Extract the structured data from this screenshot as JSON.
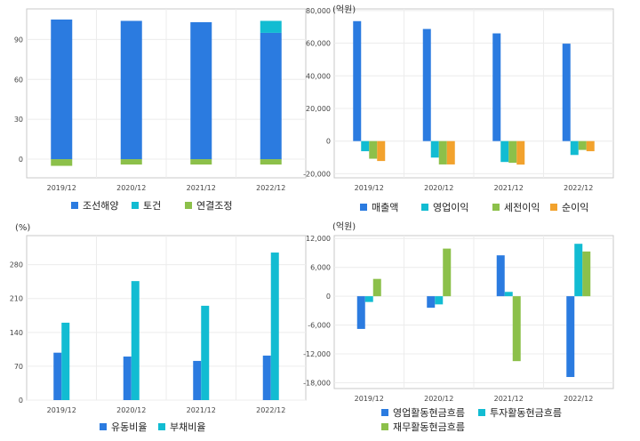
{
  "chart_data": [
    {
      "type": "bar",
      "stacked": true,
      "unit": "",
      "categories": [
        "2019/12",
        "2020/12",
        "2021/12",
        "2022/12"
      ],
      "series": [
        {
          "name": "조선해양",
          "color": "#2b7be0",
          "values": [
            105,
            104,
            103,
            95
          ]
        },
        {
          "name": "토건",
          "color": "#12bcd2",
          "values": [
            0,
            0,
            0,
            9
          ]
        },
        {
          "name": "연결조정",
          "color": "#8cc04a",
          "values": [
            -5,
            -4,
            -4,
            -4
          ]
        }
      ],
      "yticks": [
        0,
        30,
        60,
        90
      ],
      "ylim": [
        -14,
        113
      ],
      "grid": true,
      "legend": "bottom"
    },
    {
      "type": "bar",
      "unit": "(억원)",
      "categories": [
        "2019/12",
        "2020/12",
        "2021/12",
        "2022/12"
      ],
      "series": [
        {
          "name": "매출액",
          "color": "#2b7be0",
          "values": [
            73500,
            68700,
            66000,
            59700
          ]
        },
        {
          "name": "영업이익",
          "color": "#12bcd2",
          "values": [
            -6200,
            -10100,
            -12800,
            -8500
          ]
        },
        {
          "name": "세전이익",
          "color": "#8cc04a",
          "values": [
            -10800,
            -14300,
            -13300,
            -5400
          ]
        },
        {
          "name": "순이익",
          "color": "#f2a22d",
          "values": [
            -12200,
            -14300,
            -14400,
            -6200
          ]
        }
      ],
      "yticks": [
        -20000,
        0,
        20000,
        40000,
        60000,
        80000
      ],
      "yticklabels": [
        "-20,000",
        "0",
        "20,000",
        "40,000",
        "60,000",
        "80,000"
      ],
      "ylim": [
        -22500,
        81000
      ],
      "grid": true,
      "legend": "bottom"
    },
    {
      "type": "bar",
      "unit": "(%)",
      "categories": [
        "2019/12",
        "2020/12",
        "2021/12",
        "2022/12"
      ],
      "series": [
        {
          "name": "유동비율",
          "color": "#2b7be0",
          "values": [
            98,
            90,
            81,
            92
          ]
        },
        {
          "name": "부채비율",
          "color": "#12bcd2",
          "values": [
            160,
            246,
            195,
            305
          ]
        }
      ],
      "yticks": [
        0,
        70,
        140,
        210,
        280
      ],
      "ylim": [
        0,
        340
      ],
      "grid": true,
      "legend": "bottom"
    },
    {
      "type": "bar",
      "unit": "(억원)",
      "categories": [
        "2019/12",
        "2020/12",
        "2021/12",
        "2022/12"
      ],
      "series": [
        {
          "name": "영업활동현금흐름",
          "color": "#2b7be0",
          "values": [
            -6800,
            -2400,
            8500,
            -16800
          ]
        },
        {
          "name": "투자활동현금흐름",
          "color": "#12bcd2",
          "values": [
            -1200,
            -1700,
            900,
            10900
          ]
        },
        {
          "name": "재무활동현금흐름",
          "color": "#8cc04a",
          "values": [
            3600,
            9900,
            -13500,
            9300
          ]
        }
      ],
      "yticks": [
        -18000,
        -12000,
        -6000,
        0,
        6000,
        12000
      ],
      "yticklabels": [
        "-18,000",
        "-12,000",
        "-6,000",
        "0",
        "6,000",
        "12,000"
      ],
      "ylim": [
        -19200,
        12600
      ],
      "grid": true,
      "legend": "bottom"
    }
  ]
}
